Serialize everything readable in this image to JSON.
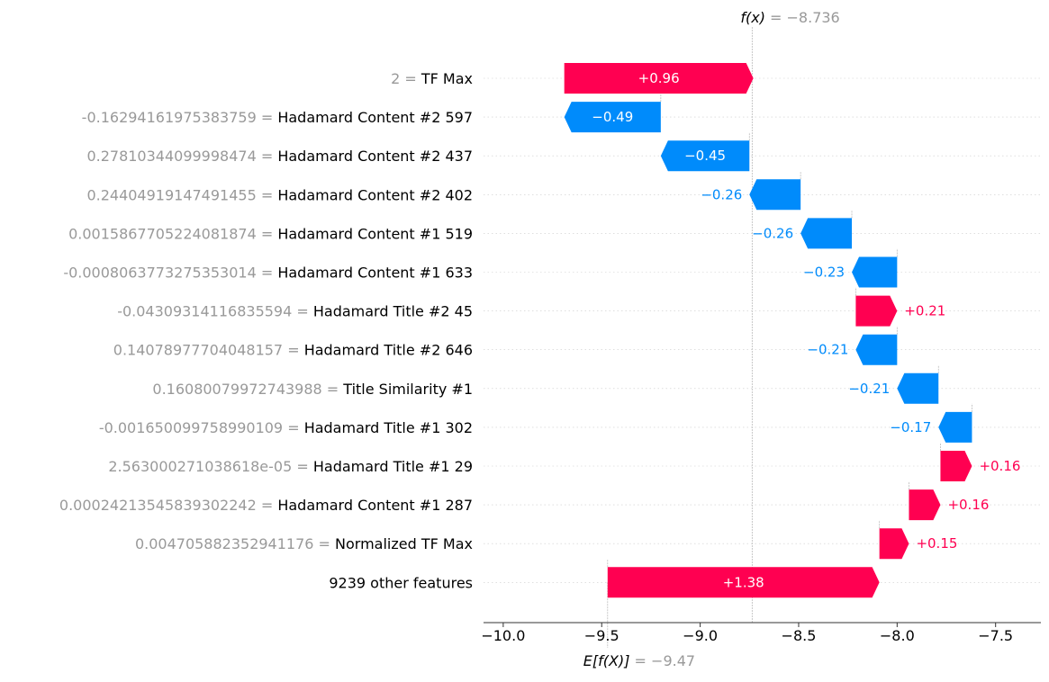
{
  "chart_data": {
    "type": "waterfall",
    "fx": {
      "label_prefix": "f(x)",
      "label_value": " = −8.736",
      "value": -8.736
    },
    "base": {
      "label_prefix": "E[f(X)]",
      "label_value": " = −9.47",
      "value": -9.47
    },
    "xlim": [
      -10.1,
      -7.27
    ],
    "xticks": [
      {
        "value": -10.0,
        "label": "−10.0"
      },
      {
        "value": -9.5,
        "label": "−9.5"
      },
      {
        "value": -9.0,
        "label": "−9.0"
      },
      {
        "value": -8.5,
        "label": "−8.5"
      },
      {
        "value": -8.0,
        "label": "−8.0"
      },
      {
        "value": -7.5,
        "label": "−7.5"
      }
    ],
    "colors": {
      "positive": "#ff0051",
      "negative": "#008bfb",
      "value_text": "#999999"
    },
    "features": [
      {
        "value_text": "2",
        "name": "TF Max",
        "contribution": 0.96,
        "label": "+0.96"
      },
      {
        "value_text": "-0.16294161975383759",
        "name": "Hadamard Content #2 597",
        "contribution": -0.49,
        "label": "−0.49"
      },
      {
        "value_text": "0.27810344099998474",
        "name": "Hadamard Content #2 437",
        "contribution": -0.45,
        "label": "−0.45"
      },
      {
        "value_text": "0.24404919147491455",
        "name": "Hadamard Content #2 402",
        "contribution": -0.26,
        "label": "−0.26"
      },
      {
        "value_text": "0.0015867705224081874",
        "name": "Hadamard Content #1 519",
        "contribution": -0.26,
        "label": "−0.26"
      },
      {
        "value_text": "-0.0008063773275353014",
        "name": "Hadamard Content #1 633",
        "contribution": -0.23,
        "label": "−0.23"
      },
      {
        "value_text": "-0.04309314116835594",
        "name": "Hadamard Title #2 45",
        "contribution": 0.21,
        "label": "+0.21"
      },
      {
        "value_text": "0.14078977704048157",
        "name": "Hadamard Title #2 646",
        "contribution": -0.21,
        "label": "−0.21"
      },
      {
        "value_text": "0.16080079972743988",
        "name": "Title Similarity #1",
        "contribution": -0.21,
        "label": "−0.21"
      },
      {
        "value_text": "-0.001650099758990109",
        "name": "Hadamard Title #1 302",
        "contribution": -0.17,
        "label": "−0.17"
      },
      {
        "value_text": "2.563000271038618e-05",
        "name": "Hadamard Title #1 29",
        "contribution": 0.16,
        "label": "+0.16"
      },
      {
        "value_text": "0.00024213545839302242",
        "name": "Hadamard Content #1 287",
        "contribution": 0.16,
        "label": "+0.16"
      },
      {
        "value_text": "0.004705882352941176",
        "name": "Normalized TF Max",
        "contribution": 0.15,
        "label": "+0.15"
      },
      {
        "value_text": "",
        "name": "9239 other features",
        "contribution": 1.38,
        "label": "+1.38"
      }
    ]
  }
}
